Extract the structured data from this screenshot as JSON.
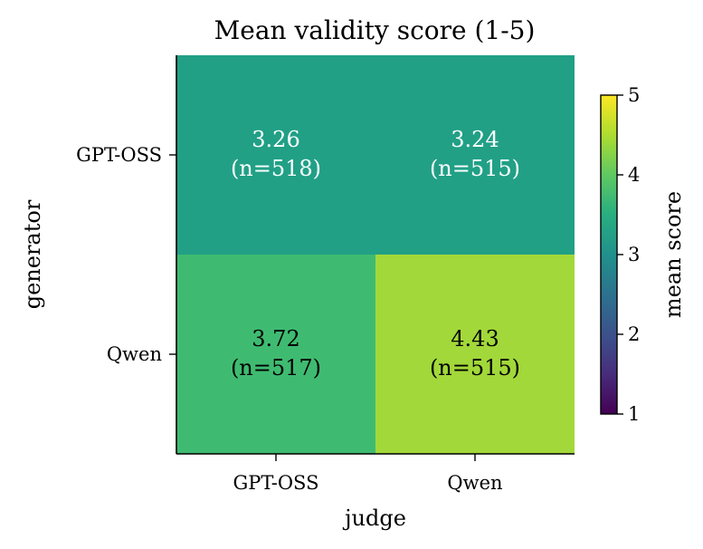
{
  "chart_data": {
    "type": "heatmap",
    "title": "Mean validity score (1-5)",
    "xlabel": "judge",
    "ylabel": "generator",
    "x_categories": [
      "GPT-OSS",
      "Qwen"
    ],
    "y_categories": [
      "GPT-OSS",
      "Qwen"
    ],
    "values": [
      [
        3.26,
        3.24
      ],
      [
        3.72,
        4.43
      ]
    ],
    "cell_labels": [
      [
        {
          "value": "3.26",
          "n": "(n=518)"
        },
        {
          "value": "3.24",
          "n": "(n=515)"
        }
      ],
      [
        {
          "value": "3.72",
          "n": "(n=517)"
        },
        {
          "value": "4.43",
          "n": "(n=515)"
        }
      ]
    ],
    "colorbar": {
      "label": "mean score",
      "range": [
        1,
        5
      ],
      "ticks": [
        "1",
        "2",
        "3",
        "4",
        "5"
      ],
      "colormap": "viridis"
    },
    "colors": {
      "cells": [
        [
          "#21a086",
          "#21a086"
        ],
        [
          "#3fbb71",
          "#a2d83a"
        ]
      ],
      "text_light": "#ffffff",
      "text_dark": "#000000"
    },
    "grid": false,
    "legend": "colorbar-right"
  }
}
